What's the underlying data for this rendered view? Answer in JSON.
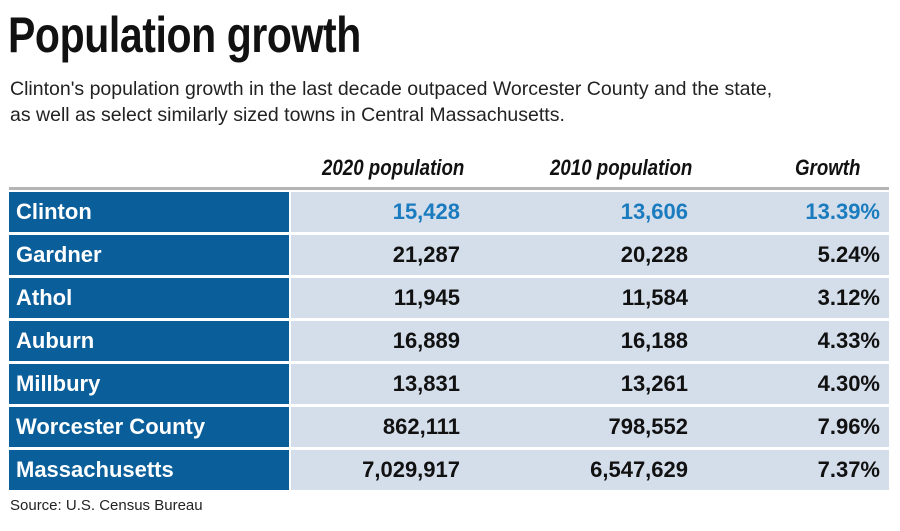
{
  "title": "Population growth",
  "subtitle": [
    "Clinton's population growth in the last decade outpaced Worcester County and the state,",
    "as well as select similarly sized towns in Central Massachusetts."
  ],
  "source": "Source: U.S. Census Bureau",
  "colors": {
    "label_bg": "#0a5e99",
    "cell_bg": "#d4deeb",
    "highlight": "#1a7bbf"
  },
  "chart_data": {
    "type": "table",
    "title": "Population growth",
    "columns": [
      "",
      "2020 population",
      "2010 population",
      "Growth"
    ],
    "rows": [
      {
        "name": "Clinton",
        "p2020": "15,428",
        "p2010": "13,606",
        "growth": "13.39%",
        "highlight": true
      },
      {
        "name": "Gardner",
        "p2020": "21,287",
        "p2010": "20,228",
        "growth": "5.24%"
      },
      {
        "name": "Athol",
        "p2020": "11,945",
        "p2010": "11,584",
        "growth": "3.12%"
      },
      {
        "name": "Auburn",
        "p2020": "16,889",
        "p2010": "16,188",
        "growth": "4.33%"
      },
      {
        "name": "Millbury",
        "p2020": "13,831",
        "p2010": "13,261",
        "growth": "4.30%"
      },
      {
        "name": "Worcester County",
        "p2020": "862,111",
        "p2010": "798,552",
        "growth": "7.96%"
      },
      {
        "name": "Massachusetts",
        "p2020": "7,029,917",
        "p2010": "6,547,629",
        "growth": "7.37%"
      }
    ]
  }
}
